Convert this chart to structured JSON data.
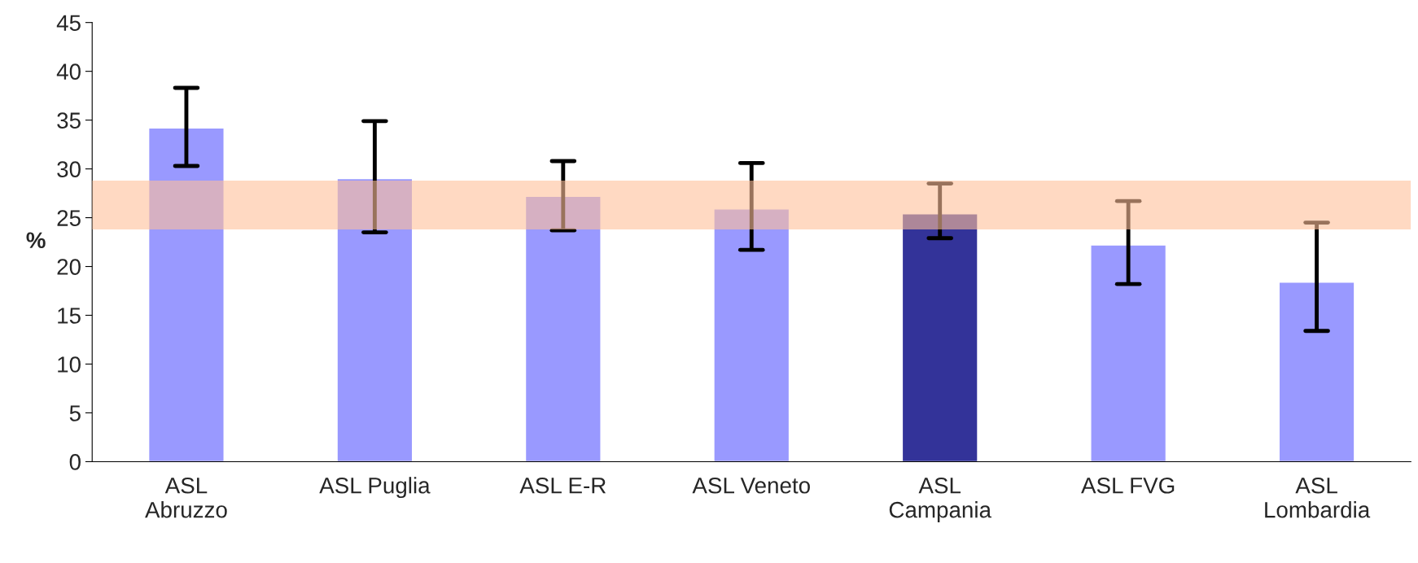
{
  "chart_data": {
    "type": "bar",
    "categories": [
      "ASL\nAbruzzo",
      "ASL Puglia",
      "ASL E-R",
      "ASL Veneto",
      "ASL\nCampania",
      "ASL FVG",
      "ASL\nLombardia"
    ],
    "values": [
      34.2,
      29.0,
      27.2,
      25.9,
      25.4,
      22.2,
      18.4
    ],
    "colors": [
      "#9999ff",
      "#9999ff",
      "#9999ff",
      "#9999ff",
      "#333399",
      "#9999ff",
      "#9999ff"
    ],
    "errors": [
      [
        30.3,
        38.3
      ],
      [
        23.5,
        34.9
      ],
      [
        23.7,
        30.8
      ],
      [
        21.7,
        30.6
      ],
      [
        22.9,
        28.5
      ],
      [
        18.2,
        26.7
      ],
      [
        13.4,
        24.5
      ]
    ],
    "bands": [
      {
        "axis": "y",
        "from": 23.8,
        "to": 28.8,
        "color": "#ffc09a"
      }
    ],
    "ylabel": "%",
    "ylim": [
      0,
      45
    ],
    "yticks": [
      0,
      5,
      10,
      15,
      20,
      25,
      30,
      35,
      40,
      45
    ],
    "grid": false,
    "legend": false
  }
}
